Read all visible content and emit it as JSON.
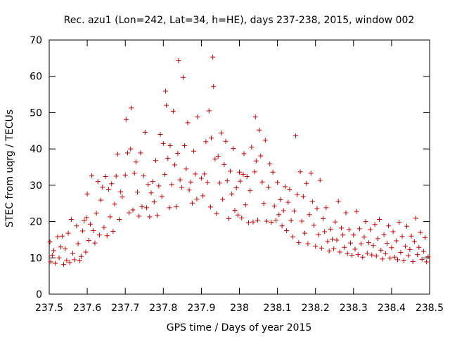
{
  "chart_data": {
    "type": "scatter",
    "title": "Rec. azu1 (Lon=242, Lat=34, h=HE), days 237-238, 2015, window 002",
    "xlabel": "GPS time / Days of year 2015",
    "ylabel": "STEC from uqrg / TECUs",
    "xlim": [
      237.5,
      238.5
    ],
    "ylim": [
      0,
      70
    ],
    "xticks": [
      237.5,
      237.6,
      237.7,
      237.8,
      237.9,
      238.0,
      238.1,
      238.2,
      238.3,
      238.4,
      238.5
    ],
    "xtick_labels": [
      "237.5",
      "237.6",
      "237.7",
      "237.8",
      "237.9",
      "238",
      "238.1",
      "238.2",
      "238.3",
      "238.4",
      "238.5"
    ],
    "yticks": [
      0,
      10,
      20,
      30,
      40,
      50,
      60,
      70
    ],
    "ytick_labels": [
      "0",
      "10",
      "20",
      "30",
      "40",
      "50",
      "60",
      "70"
    ],
    "grid": false,
    "marker": "+",
    "marker_color": "#cc0000",
    "series": [
      {
        "points": [
          [
            237.502,
            14.4
          ],
          [
            237.504,
            8.9
          ],
          [
            237.508,
            10.7
          ],
          [
            237.512,
            12.0
          ],
          [
            237.516,
            8.5
          ],
          [
            237.522,
            15.8
          ],
          [
            237.526,
            10.0
          ],
          [
            237.53,
            13.0
          ],
          [
            237.534,
            16.0
          ],
          [
            237.538,
            8.2
          ],
          [
            237.542,
            12.5
          ],
          [
            237.546,
            9.3
          ],
          [
            237.55,
            16.8
          ],
          [
            237.554,
            8.7
          ],
          [
            237.558,
            20.6
          ],
          [
            237.562,
            11.3
          ],
          [
            237.566,
            9.5
          ],
          [
            237.572,
            18.8
          ],
          [
            237.576,
            13.9
          ],
          [
            237.58,
            9.2
          ],
          [
            237.584,
            10.4
          ],
          [
            237.588,
            17.4
          ],
          [
            237.592,
            20.2
          ],
          [
            237.596,
            11.6
          ],
          [
            237.598,
            21.1
          ],
          [
            237.6,
            27.6
          ],
          [
            237.604,
            14.8
          ],
          [
            237.608,
            19.3
          ],
          [
            237.612,
            32.6
          ],
          [
            237.616,
            17.5
          ],
          [
            237.62,
            14.1
          ],
          [
            237.624,
            22.3
          ],
          [
            237.628,
            31.0
          ],
          [
            237.632,
            16.3
          ],
          [
            237.636,
            25.9
          ],
          [
            237.64,
            29.5
          ],
          [
            237.644,
            18.4
          ],
          [
            237.648,
            32.4
          ],
          [
            237.652,
            16.1
          ],
          [
            237.656,
            28.9
          ],
          [
            237.66,
            21.3
          ],
          [
            237.664,
            30.4
          ],
          [
            237.668,
            17.3
          ],
          [
            237.672,
            24.8
          ],
          [
            237.676,
            32.5
          ],
          [
            237.68,
            38.6
          ],
          [
            237.684,
            20.6
          ],
          [
            237.688,
            28.2
          ],
          [
            237.692,
            26.8
          ],
          [
            237.7,
            32.8
          ],
          [
            237.702,
            48.1
          ],
          [
            237.706,
            38.9
          ],
          [
            237.71,
            22.4
          ],
          [
            237.714,
            40.0
          ],
          [
            237.716,
            51.3
          ],
          [
            237.72,
            23.2
          ],
          [
            237.724,
            33.3
          ],
          [
            237.728,
            36.4
          ],
          [
            237.732,
            28.1
          ],
          [
            237.736,
            21.5
          ],
          [
            237.74,
            38.9
          ],
          [
            237.744,
            24.1
          ],
          [
            237.748,
            32.6
          ],
          [
            237.752,
            44.6
          ],
          [
            237.756,
            23.8
          ],
          [
            237.76,
            30.2
          ],
          [
            237.764,
            21.3
          ],
          [
            237.768,
            27.9
          ],
          [
            237.772,
            31.0
          ],
          [
            237.776,
            25.4
          ],
          [
            237.78,
            36.8
          ],
          [
            237.784,
            21.7
          ],
          [
            237.788,
            29.8
          ],
          [
            237.792,
            44.0
          ],
          [
            237.796,
            26.9
          ],
          [
            237.8,
            41.5
          ],
          [
            237.804,
            33.0
          ],
          [
            237.806,
            55.9
          ],
          [
            237.808,
            52.0
          ],
          [
            237.812,
            37.4
          ],
          [
            237.816,
            23.8
          ],
          [
            237.818,
            40.9
          ],
          [
            237.822,
            30.2
          ],
          [
            237.826,
            50.4
          ],
          [
            237.83,
            35.6
          ],
          [
            237.834,
            24.1
          ],
          [
            237.838,
            38.8
          ],
          [
            237.84,
            64.3
          ],
          [
            237.844,
            31.5
          ],
          [
            237.848,
            29.4
          ],
          [
            237.852,
            59.7
          ],
          [
            237.856,
            40.9
          ],
          [
            237.86,
            34.5
          ],
          [
            237.864,
            47.2
          ],
          [
            237.868,
            28.7
          ],
          [
            237.872,
            30.9
          ],
          [
            237.876,
            25.1
          ],
          [
            237.88,
            39.4
          ],
          [
            237.884,
            33.1
          ],
          [
            237.888,
            26.2
          ],
          [
            237.89,
            48.8
          ],
          [
            237.9,
            31.9
          ],
          [
            237.904,
            27.1
          ],
          [
            237.908,
            33.1
          ],
          [
            237.912,
            42.0
          ],
          [
            237.916,
            30.8
          ],
          [
            237.92,
            50.5
          ],
          [
            237.924,
            24.0
          ],
          [
            237.926,
            43.0
          ],
          [
            237.93,
            65.3
          ],
          [
            237.932,
            57.2
          ],
          [
            237.936,
            37.2
          ],
          [
            237.94,
            22.2
          ],
          [
            237.944,
            38.0
          ],
          [
            237.948,
            30.6
          ],
          [
            237.952,
            44.4
          ],
          [
            237.956,
            26.1
          ],
          [
            237.96,
            35.7
          ],
          [
            237.964,
            42.1
          ],
          [
            237.968,
            31.2
          ],
          [
            237.972,
            20.8
          ],
          [
            237.976,
            33.9
          ],
          [
            237.98,
            27.6
          ],
          [
            237.984,
            40.1
          ],
          [
            237.988,
            23.1
          ],
          [
            237.992,
            29.3
          ],
          [
            237.996,
            21.8
          ],
          [
            238.0,
            33.6
          ],
          [
            238.002,
            31.1
          ],
          [
            238.006,
            21.0
          ],
          [
            238.01,
            33.0
          ],
          [
            238.012,
            38.7
          ],
          [
            238.016,
            24.6
          ],
          [
            238.02,
            32.4
          ],
          [
            238.024,
            19.7
          ],
          [
            238.028,
            28.5
          ],
          [
            238.032,
            40.5
          ],
          [
            238.036,
            19.9
          ],
          [
            238.04,
            33.7
          ],
          [
            238.042,
            48.8
          ],
          [
            238.044,
            36.7
          ],
          [
            238.048,
            20.4
          ],
          [
            238.052,
            45.2
          ],
          [
            238.056,
            38.1
          ],
          [
            238.06,
            30.9
          ],
          [
            238.064,
            25.0
          ],
          [
            238.068,
            42.4
          ],
          [
            238.072,
            20.1
          ],
          [
            238.076,
            29.5
          ],
          [
            238.08,
            35.9
          ],
          [
            238.084,
            19.8
          ],
          [
            238.088,
            33.6
          ],
          [
            238.092,
            24.3
          ],
          [
            238.096,
            20.4
          ],
          [
            238.1,
            30.8
          ],
          [
            238.104,
            21.9
          ],
          [
            238.108,
            26.0
          ],
          [
            238.112,
            18.8
          ],
          [
            238.116,
            23.0
          ],
          [
            238.12,
            29.6
          ],
          [
            238.124,
            17.5
          ],
          [
            238.128,
            25.3
          ],
          [
            238.132,
            28.9
          ],
          [
            238.136,
            20.3
          ],
          [
            238.14,
            15.8
          ],
          [
            238.144,
            22.9
          ],
          [
            238.148,
            43.6
          ],
          [
            238.152,
            27.4
          ],
          [
            238.156,
            14.2
          ],
          [
            238.16,
            33.7
          ],
          [
            238.164,
            20.1
          ],
          [
            238.168,
            26.9
          ],
          [
            238.172,
            16.8
          ],
          [
            238.176,
            30.5
          ],
          [
            238.18,
            13.9
          ],
          [
            238.184,
            21.9
          ],
          [
            238.188,
            33.3
          ],
          [
            238.192,
            25.5
          ],
          [
            238.196,
            19.0
          ],
          [
            238.2,
            13.2
          ],
          [
            238.204,
            23.6
          ],
          [
            238.208,
            16.4
          ],
          [
            238.212,
            31.4
          ],
          [
            238.216,
            12.7
          ],
          [
            238.22,
            20.8
          ],
          [
            238.224,
            17.2
          ],
          [
            238.228,
            23.8
          ],
          [
            238.232,
            14.5
          ],
          [
            238.236,
            11.9
          ],
          [
            238.24,
            17.9
          ],
          [
            238.244,
            15.1
          ],
          [
            238.248,
            12.5
          ],
          [
            238.252,
            19.9
          ],
          [
            238.256,
            14.9
          ],
          [
            238.26,
            25.6
          ],
          [
            238.264,
            11.6
          ],
          [
            238.268,
            18.2
          ],
          [
            238.272,
            16.3
          ],
          [
            238.276,
            12.9
          ],
          [
            238.28,
            22.4
          ],
          [
            238.284,
            11.2
          ],
          [
            238.288,
            17.8
          ],
          [
            238.292,
            14.1
          ],
          [
            238.296,
            10.7
          ],
          [
            238.3,
            16.3
          ],
          [
            238.304,
            12.4
          ],
          [
            238.308,
            22.8
          ],
          [
            238.312,
            10.9
          ],
          [
            238.316,
            18.0
          ],
          [
            238.32,
            13.9
          ],
          [
            238.324,
            10.2
          ],
          [
            238.328,
            15.7
          ],
          [
            238.332,
            20.0
          ],
          [
            238.336,
            11.3
          ],
          [
            238.34,
            14.2
          ],
          [
            238.344,
            17.8
          ],
          [
            238.348,
            10.8
          ],
          [
            238.352,
            13.4
          ],
          [
            238.356,
            19.2
          ],
          [
            238.36,
            10.5
          ],
          [
            238.364,
            15.3
          ],
          [
            238.368,
            20.6
          ],
          [
            238.372,
            12.1
          ],
          [
            238.376,
            9.7
          ],
          [
            238.38,
            16.4
          ],
          [
            238.384,
            11.2
          ],
          [
            238.388,
            14.0
          ],
          [
            238.392,
            18.8
          ],
          [
            238.396,
            9.9
          ],
          [
            238.4,
            12.8
          ],
          [
            238.404,
            17.2
          ],
          [
            238.408,
            10.2
          ],
          [
            238.412,
            14.7
          ],
          [
            238.416,
            9.5
          ],
          [
            238.42,
            19.8
          ],
          [
            238.424,
            11.5
          ],
          [
            238.428,
            15.9
          ],
          [
            238.432,
            9.2
          ],
          [
            238.436,
            13.2
          ],
          [
            238.44,
            18.7
          ],
          [
            238.444,
            10.6
          ],
          [
            238.448,
            12.3
          ],
          [
            238.452,
            16.0
          ],
          [
            238.456,
            9.0
          ],
          [
            238.46,
            14.5
          ],
          [
            238.464,
            20.9
          ],
          [
            238.468,
            10.9
          ],
          [
            238.472,
            12.9
          ],
          [
            238.476,
            17.0
          ],
          [
            238.48,
            9.6
          ],
          [
            238.484,
            11.8
          ],
          [
            238.488,
            15.6
          ],
          [
            238.492,
            8.9
          ],
          [
            238.496,
            10.3
          ]
        ]
      }
    ]
  }
}
